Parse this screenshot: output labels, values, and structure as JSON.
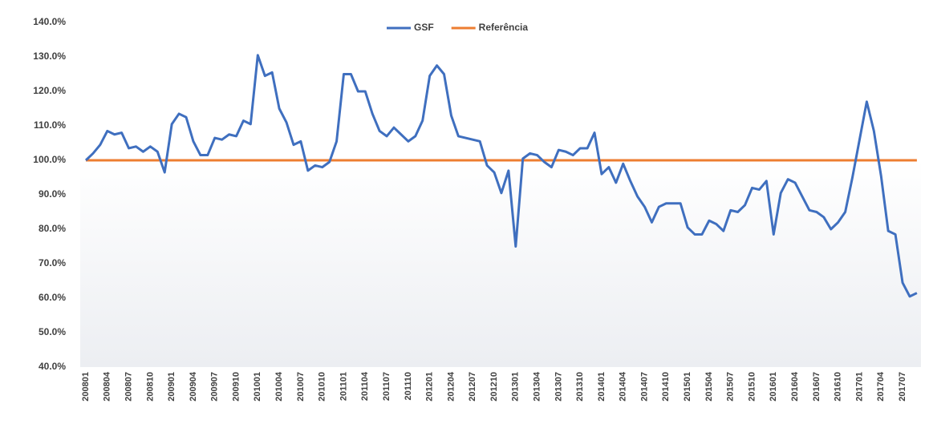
{
  "chart_data": {
    "type": "line",
    "categories": [
      "200801",
      null,
      null,
      "200804",
      null,
      null,
      "200807",
      null,
      null,
      "200810",
      null,
      null,
      "200901",
      null,
      null,
      "200904",
      null,
      null,
      "200907",
      null,
      null,
      "200910",
      null,
      null,
      "201001",
      null,
      null,
      "201004",
      null,
      null,
      "201007",
      null,
      null,
      "201010",
      null,
      null,
      "201101",
      null,
      null,
      "201104",
      null,
      null,
      "201107",
      null,
      null,
      "201110",
      null,
      null,
      "201201",
      null,
      null,
      "201204",
      null,
      null,
      "201207",
      null,
      null,
      "201210",
      null,
      null,
      "201301",
      null,
      null,
      "201304",
      null,
      null,
      "201307",
      null,
      null,
      "201310",
      null,
      null,
      "201401",
      null,
      null,
      "201404",
      null,
      null,
      "201407",
      null,
      null,
      "201410",
      null,
      null,
      "201501",
      null,
      null,
      "201504",
      null,
      null,
      "201507",
      null,
      null,
      "201510",
      null,
      null,
      "201601",
      null,
      null,
      "201604",
      null,
      null,
      "201607",
      null,
      null,
      "201610",
      null,
      null,
      "201701",
      null,
      null,
      "201704",
      null,
      null,
      "201707",
      null,
      null
    ],
    "series": [
      {
        "name": "GSF",
        "color": "#3f6fbf",
        "values": [
          100,
          102,
          104.5,
          108.5,
          107.5,
          108,
          103.5,
          104,
          102.5,
          104,
          102.5,
          96.5,
          110.5,
          113.5,
          112.5,
          105.5,
          101.5,
          101.5,
          106.5,
          106,
          107.5,
          107,
          111.5,
          110.5,
          130.5,
          124.5,
          125.5,
          115,
          111,
          104.5,
          105.5,
          97,
          98.5,
          98,
          99.5,
          105.5,
          125,
          125,
          120,
          120,
          113.5,
          108.5,
          107,
          109.5,
          107.5,
          105.5,
          107,
          111.5,
          124.5,
          127.5,
          125,
          113,
          107,
          106.5,
          106,
          105.5,
          98.5,
          96.5,
          90.5,
          97,
          75,
          100.5,
          102,
          101.5,
          99.5,
          98,
          103,
          102.5,
          101.5,
          103.5,
          103.5,
          108,
          96,
          98,
          93.5,
          99,
          94,
          89.5,
          86.5,
          82,
          86.5,
          87.5,
          87.5,
          87.5,
          80.5,
          78.5,
          78.5,
          82.5,
          81.5,
          79.5,
          85.5,
          85,
          87,
          92,
          91.5,
          94,
          78.5,
          90.5,
          94.5,
          93.5,
          89.5,
          85.5,
          85,
          83.5,
          80,
          82,
          85,
          95,
          106,
          117,
          108.5,
          95.5,
          79.5,
          78.5,
          64.5,
          60.5,
          61.5
        ]
      },
      {
        "name": "Referência",
        "color": "#ed7d31",
        "values": [
          100,
          100,
          100,
          100,
          100,
          100,
          100,
          100,
          100,
          100,
          100,
          100,
          100,
          100,
          100,
          100,
          100,
          100,
          100,
          100,
          100,
          100,
          100,
          100,
          100,
          100,
          100,
          100,
          100,
          100,
          100,
          100,
          100,
          100,
          100,
          100,
          100,
          100,
          100,
          100,
          100,
          100,
          100,
          100,
          100,
          100,
          100,
          100,
          100,
          100,
          100,
          100,
          100,
          100,
          100,
          100,
          100,
          100,
          100,
          100,
          100,
          100,
          100,
          100,
          100,
          100,
          100,
          100,
          100,
          100,
          100,
          100,
          100,
          100,
          100,
          100,
          100,
          100,
          100,
          100,
          100,
          100,
          100,
          100,
          100,
          100,
          100,
          100,
          100,
          100,
          100,
          100,
          100,
          100,
          100,
          100,
          100,
          100,
          100,
          100,
          100,
          100,
          100,
          100,
          100,
          100,
          100,
          100,
          100,
          100,
          100,
          100,
          100,
          100,
          100,
          100,
          100
        ]
      }
    ],
    "ylim": [
      40,
      140
    ],
    "yticks": [
      {
        "value": 40,
        "label": "40.0%"
      },
      {
        "value": 50,
        "label": "50.0%"
      },
      {
        "value": 60,
        "label": "60.0%"
      },
      {
        "value": 70,
        "label": "70.0%"
      },
      {
        "value": 80,
        "label": "80.0%"
      },
      {
        "value": 90,
        "label": "90.0%"
      },
      {
        "value": 100,
        "label": "100.0%"
      },
      {
        "value": 110,
        "label": "110.0%"
      },
      {
        "value": 120,
        "label": "120.0%"
      },
      {
        "value": 130,
        "label": "130.0%"
      },
      {
        "value": 140,
        "label": "140.0%"
      }
    ],
    "grid": false,
    "legend": "top"
  }
}
